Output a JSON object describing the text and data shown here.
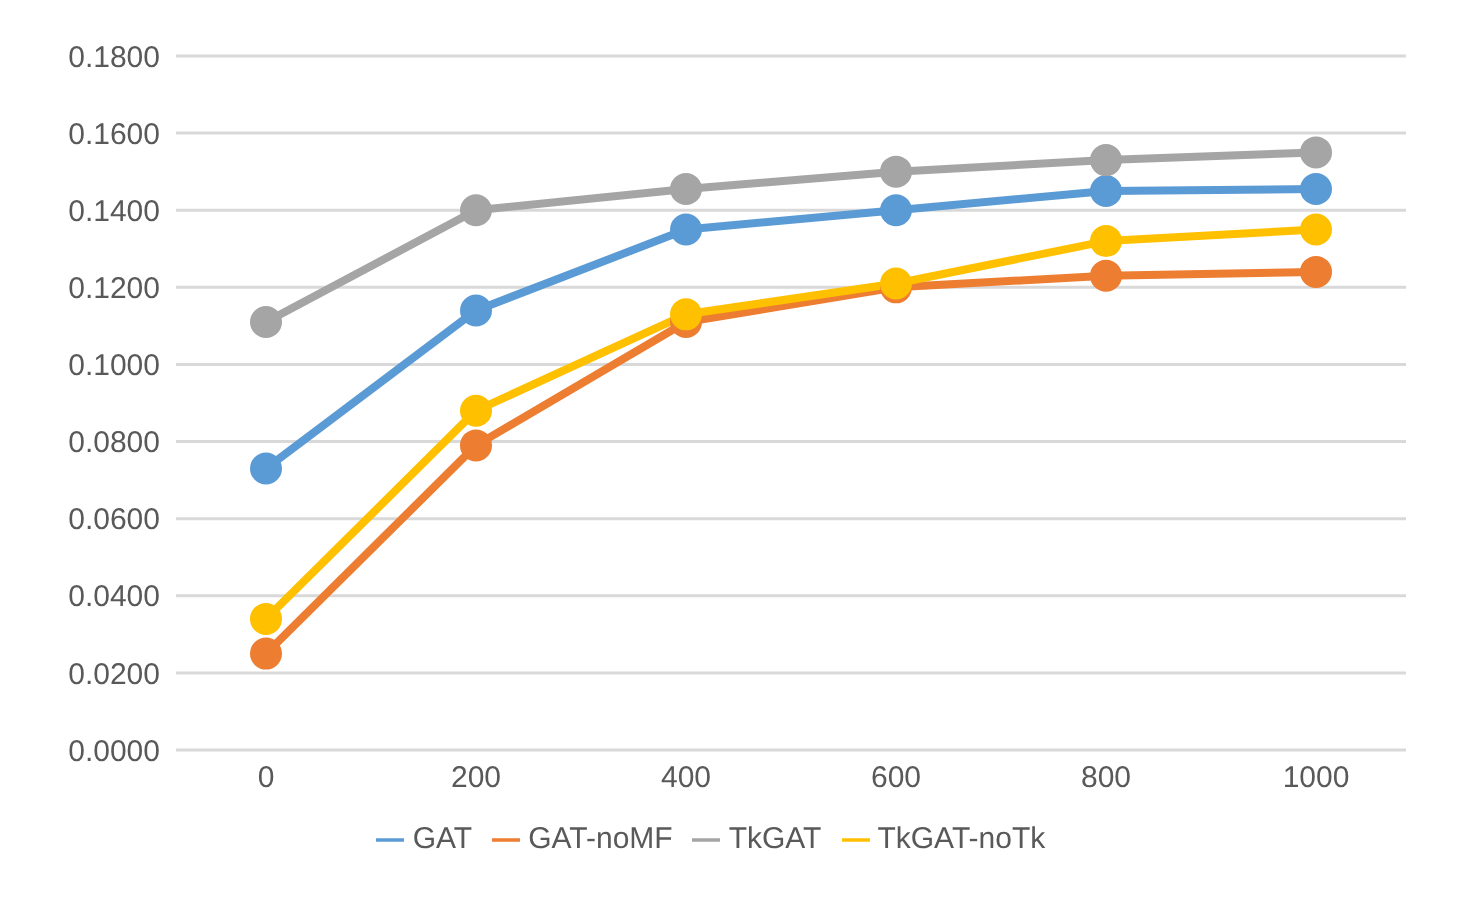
{
  "chart_data": {
    "type": "line",
    "categories": [
      "0",
      "200",
      "400",
      "600",
      "800",
      "1000"
    ],
    "series": [
      {
        "name": "GAT",
        "color": "#5b9bd5",
        "values": [
          0.073,
          0.114,
          0.135,
          0.14,
          0.145,
          0.1455
        ]
      },
      {
        "name": "GAT-noMF",
        "color": "#ed7d31",
        "values": [
          0.025,
          0.079,
          0.111,
          0.12,
          0.123,
          0.124
        ]
      },
      {
        "name": "TkGAT",
        "color": "#a5a5a5",
        "values": [
          0.111,
          0.14,
          0.1455,
          0.15,
          0.153,
          0.155
        ]
      },
      {
        "name": "TkGAT-noTk",
        "color": "#ffc000",
        "values": [
          0.034,
          0.088,
          0.113,
          0.121,
          0.132,
          0.135
        ]
      }
    ],
    "ylim": [
      0,
      0.18
    ],
    "yticks": [
      {
        "value": 0,
        "label": "0.0000"
      },
      {
        "value": 0.02,
        "label": "0.0200"
      },
      {
        "value": 0.04,
        "label": "0.0400"
      },
      {
        "value": 0.06,
        "label": "0.0600"
      },
      {
        "value": 0.08,
        "label": "0.0800"
      },
      {
        "value": 0.1,
        "label": "0.1000"
      },
      {
        "value": 0.12,
        "label": "0.1200"
      },
      {
        "value": 0.14,
        "label": "0.1400"
      },
      {
        "value": 0.16,
        "label": "0.1600"
      },
      {
        "value": 0.18,
        "label": "0.1800"
      }
    ],
    "grid": "y",
    "legend": "bottom",
    "marker": "circle",
    "line_style": "solid"
  }
}
